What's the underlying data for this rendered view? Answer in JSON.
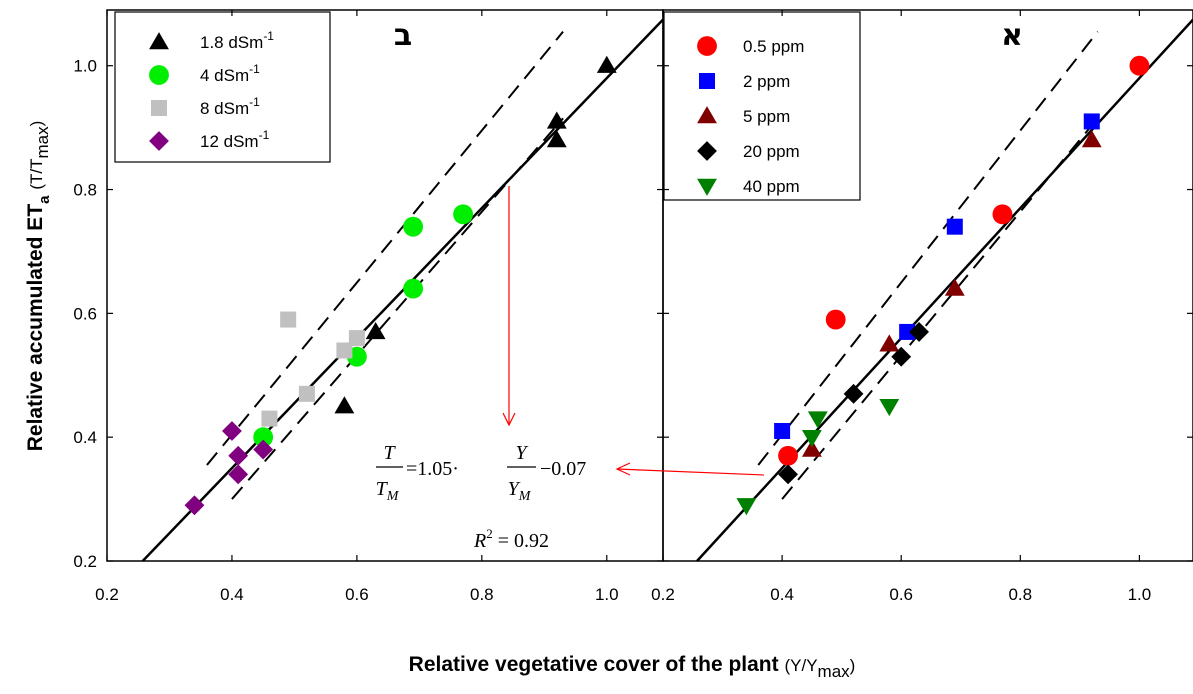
{
  "chart_data": [
    {
      "type": "scatter",
      "panel_label": "ב",
      "x": {
        "ticks": [
          0.2,
          0.4,
          0.6,
          0.8,
          1.0
        ],
        "tick_labels": [
          "0.2",
          "0.4",
          "0.6",
          "0.8",
          "1.0"
        ],
        "range": [
          0.2,
          1.09
        ]
      },
      "y": {
        "ticks": [
          0.2,
          0.4,
          0.6,
          0.8,
          1.0
        ],
        "tick_labels": [
          "0.2",
          "0.4",
          "0.6",
          "0.8",
          "1.0"
        ],
        "range": [
          0.2,
          1.09
        ]
      },
      "legend_position": "top-left",
      "series": [
        {
          "name_base": "1.8  dSm",
          "name_sup": "-1",
          "marker": "triangle",
          "color": "#000000",
          "points": [
            [
              1.0,
              1.0
            ],
            [
              0.92,
              0.91
            ],
            [
              0.92,
              0.88
            ],
            [
              0.63,
              0.57
            ],
            [
              0.58,
              0.45
            ]
          ]
        },
        {
          "name_base": "4 dSm",
          "name_sup": "-1",
          "marker": "circle",
          "color": "#00ee00",
          "points": [
            [
              0.77,
              0.76
            ],
            [
              0.69,
              0.74
            ],
            [
              0.69,
              0.64
            ],
            [
              0.6,
              0.53
            ],
            [
              0.45,
              0.4
            ]
          ]
        },
        {
          "name_base": "8 dSm",
          "name_sup": "-1",
          "marker": "square",
          "color": "#c0c0c0",
          "points": [
            [
              0.49,
              0.59
            ],
            [
              0.58,
              0.54
            ],
            [
              0.6,
              0.56
            ],
            [
              0.52,
              0.47
            ],
            [
              0.46,
              0.43
            ]
          ]
        },
        {
          "name_base": "12 dSm",
          "name_sup": "-1",
          "marker": "diamond",
          "color": "#800080",
          "points": [
            [
              0.4,
              0.41
            ],
            [
              0.41,
              0.37
            ],
            [
              0.45,
              0.38
            ],
            [
              0.41,
              0.34
            ],
            [
              0.34,
              0.29
            ]
          ]
        }
      ]
    },
    {
      "type": "scatter",
      "panel_label": "א",
      "x": {
        "ticks": [
          0.2,
          0.4,
          0.6,
          0.8,
          1.0
        ],
        "tick_labels": [
          "0.2",
          "0.4",
          "0.6",
          "0.8",
          "1.0"
        ],
        "range": [
          0.2,
          1.09
        ]
      },
      "y": {
        "ticks": [
          0.2,
          0.4,
          0.6,
          0.8,
          1.0
        ],
        "tick_labels": [
          "",
          "",
          "",
          "",
          ""
        ],
        "range": [
          0.2,
          1.09
        ]
      },
      "legend_position": "top-left",
      "series": [
        {
          "name": "0.5 ppm",
          "marker": "circle",
          "color": "#ff0000",
          "points": [
            [
              1.0,
              1.0
            ],
            [
              0.77,
              0.76
            ],
            [
              0.49,
              0.59
            ],
            [
              0.41,
              0.37
            ]
          ]
        },
        {
          "name": "2 ppm",
          "marker": "square",
          "color": "#0000ff",
          "points": [
            [
              0.92,
              0.91
            ],
            [
              0.69,
              0.74
            ],
            [
              0.61,
              0.57
            ],
            [
              0.4,
              0.41
            ]
          ]
        },
        {
          "name": "5 ppm",
          "marker": "triangle",
          "color": "#800000",
          "points": [
            [
              0.92,
              0.88
            ],
            [
              0.69,
              0.64
            ],
            [
              0.58,
              0.55
            ],
            [
              0.45,
              0.38
            ]
          ]
        },
        {
          "name": "20 ppm",
          "marker": "diamond",
          "color": "#000000",
          "points": [
            [
              0.63,
              0.57
            ],
            [
              0.6,
              0.53
            ],
            [
              0.52,
              0.47
            ],
            [
              0.41,
              0.34
            ]
          ]
        },
        {
          "name": "40 ppm",
          "marker": "triangle-down",
          "color": "#008000",
          "points": [
            [
              0.58,
              0.45
            ],
            [
              0.46,
              0.43
            ],
            [
              0.45,
              0.4
            ],
            [
              0.34,
              0.29
            ]
          ]
        }
      ]
    }
  ],
  "regression": {
    "slope": 1.05,
    "intercept": -0.07,
    "r2": 0.92
  },
  "y_axis_title": {
    "main": "Relative accumulated ET",
    "sub": "a",
    "unit_open": "(T/T",
    "unit_sub": "max",
    "unit_close": ")"
  },
  "x_axis_title": {
    "main": "Relative vegetative cover of the plant",
    "unit_open": "(Y/Y",
    "unit_sub": "max",
    "unit_close": ")"
  },
  "equation": {
    "T": "T",
    "TM": "T",
    "TM_sub": "M",
    "equals": "=1.05·",
    "Y": "Y",
    "YM": "Y",
    "YM_sub": "M",
    "tail": "−0.07"
  },
  "r2_text": {
    "R": "R",
    "sup": "2",
    "rest": " = 0.92"
  },
  "colors": {
    "annotation_arrow": "#ff0000"
  }
}
